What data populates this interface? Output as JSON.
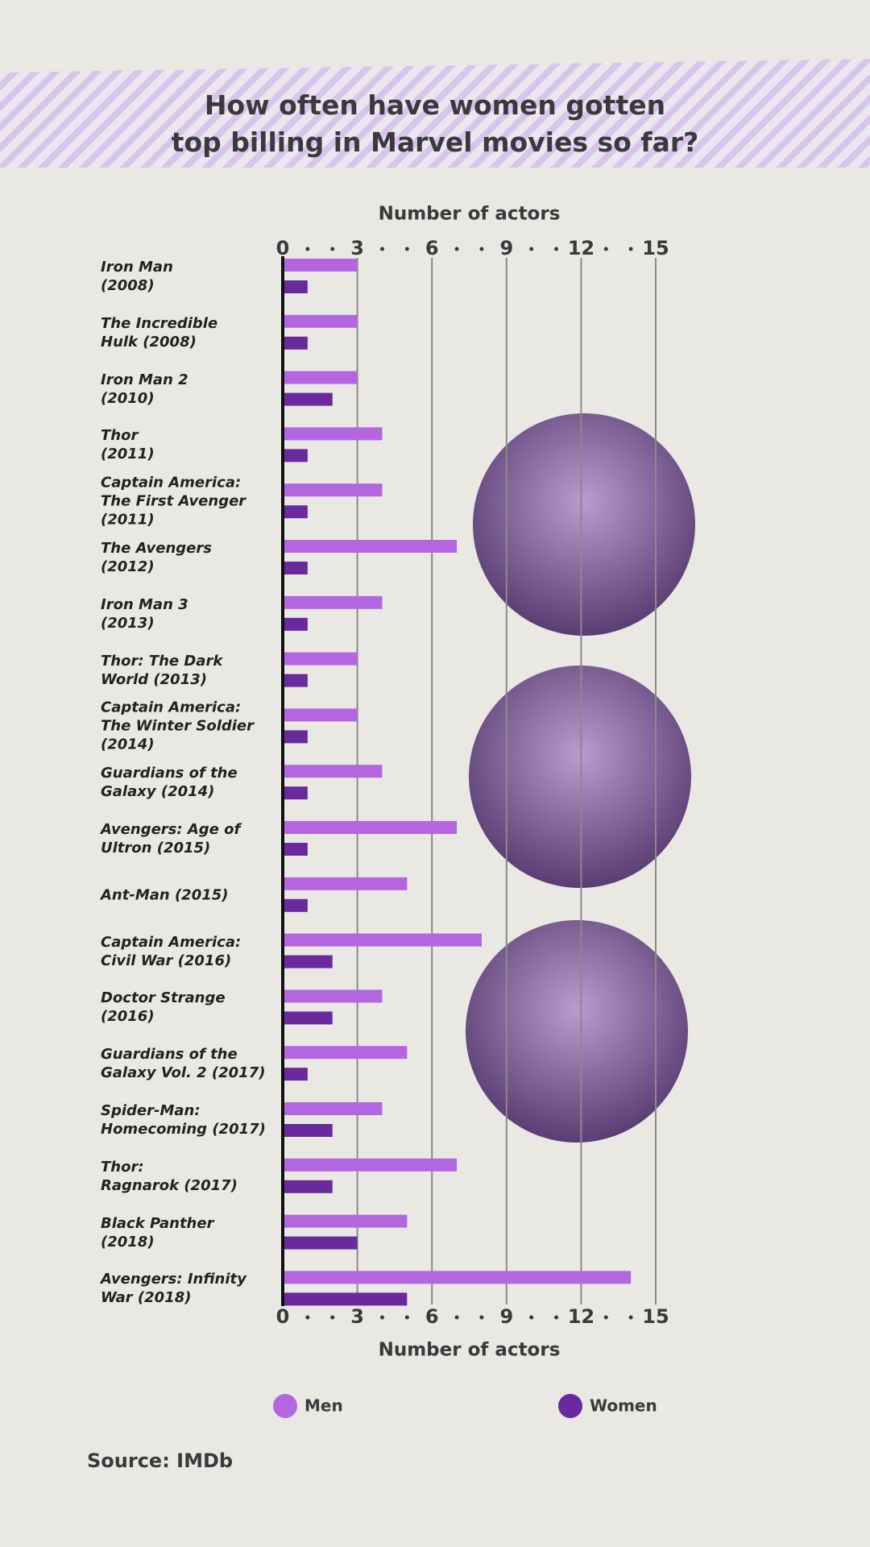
{
  "chart_data": {
    "type": "bar",
    "orientation": "horizontal",
    "title": "How often have women gotten\ntop billing in Marvel movies so far?",
    "x_label": "Number of actors",
    "categories": [
      "Iron Man\n(2008)",
      "The Incredible\nHulk (2008)",
      "Iron Man 2\n(2010)",
      "Thor\n(2011)",
      "Captain America:\nThe First Avenger\n(2011)",
      "The Avengers\n(2012)",
      "Iron Man 3\n(2013)",
      "Thor: The Dark\nWorld (2013)",
      "Captain America:\nThe Winter Soldier\n(2014)",
      "Guardians of the\nGalaxy (2014)",
      "Avengers: Age of\nUltron (2015)",
      "Ant-Man (2015)",
      "Captain America:\nCivil War (2016)",
      "Doctor Strange\n(2016)",
      "Guardians of the\nGalaxy Vol. 2 (2017)",
      "Spider-Man:\nHomecoming (2017)",
      "Thor:\nRagnarok (2017)",
      "Black Panther\n(2018)",
      "Avengers: Infinity\nWar (2018)"
    ],
    "series": [
      {
        "name": "Men",
        "color": "#b466e0",
        "values": [
          3,
          3,
          3,
          4,
          4,
          7,
          4,
          3,
          3,
          4,
          7,
          5,
          8,
          4,
          5,
          4,
          7,
          5,
          14
        ]
      },
      {
        "name": "Women",
        "color": "#6a2a9e",
        "values": [
          1,
          1,
          2,
          1,
          1,
          1,
          1,
          1,
          1,
          1,
          1,
          1,
          2,
          2,
          1,
          2,
          2,
          3,
          5
        ]
      }
    ],
    "xlim": [
      0,
      15
    ],
    "xticks": [
      0,
      3,
      6,
      9,
      12,
      15
    ],
    "grid": true,
    "source": "Source: IMDb"
  }
}
